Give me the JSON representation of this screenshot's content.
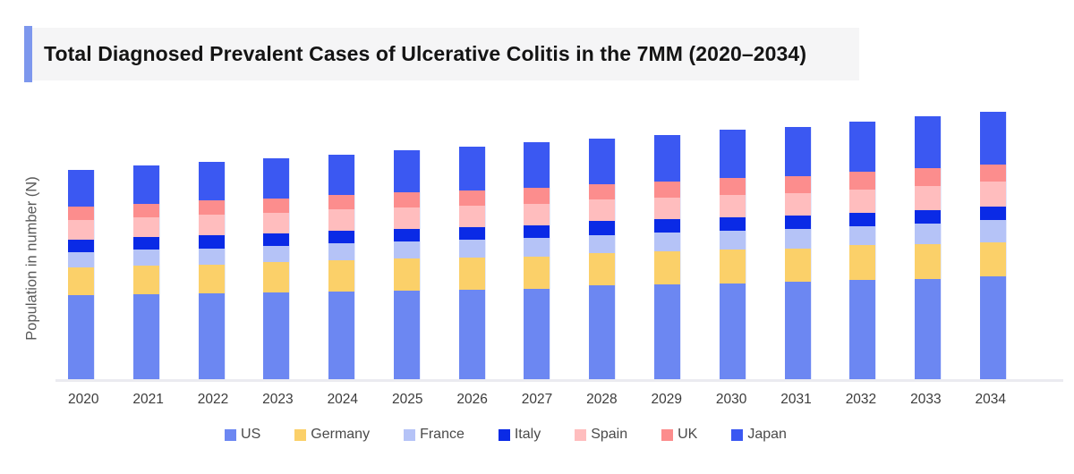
{
  "header": {
    "title": "Total Diagnosed Prevalent Cases of Ulcerative Colitis in the 7MM (2020–2034)",
    "accent_color": "#7d97ed",
    "background_color": "#f5f5f6"
  },
  "chart_data": {
    "type": "bar",
    "stacked": true,
    "title": "Total Diagnosed Prevalent Cases of Ulcerative Colitis in the 7MM (2020–2034)",
    "xlabel": "",
    "ylabel": "Population in number (N)",
    "y_axis_numeric_ticks_visible": false,
    "grid": false,
    "legend_position": "bottom",
    "ylim": [
      0,
      310
    ],
    "categories": [
      "2020",
      "2021",
      "2022",
      "2023",
      "2024",
      "2025",
      "2026",
      "2027",
      "2028",
      "2029",
      "2030",
      "2031",
      "2032",
      "2033",
      "2034"
    ],
    "series": [
      {
        "name": "US",
        "color": "#6c87f2",
        "values": [
          94,
          95,
          96,
          97,
          98,
          99,
          100,
          101,
          105,
          106,
          107,
          109,
          111,
          112,
          115
        ]
      },
      {
        "name": "Germany",
        "color": "#fbd069",
        "values": [
          31,
          32,
          32,
          34,
          35,
          36,
          36,
          36,
          36,
          37,
          38,
          37,
          39,
          39,
          38
        ]
      },
      {
        "name": "France",
        "color": "#b5c3f7",
        "values": [
          17,
          18,
          18,
          18,
          19,
          19,
          20,
          21,
          20,
          21,
          21,
          22,
          21,
          23,
          25
        ]
      },
      {
        "name": "Italy",
        "color": "#0a2ae6",
        "values": [
          14,
          14,
          15,
          14,
          14,
          14,
          14,
          14,
          16,
          15,
          15,
          15,
          15,
          15,
          15
        ]
      },
      {
        "name": "Spain",
        "color": "#ffbdbe",
        "values": [
          22,
          22,
          23,
          23,
          24,
          24,
          24,
          24,
          24,
          24,
          25,
          25,
          26,
          27,
          28
        ]
      },
      {
        "name": "UK",
        "color": "#fc8d8d",
        "values": [
          15,
          15,
          16,
          16,
          16,
          17,
          17,
          18,
          17,
          18,
          19,
          19,
          20,
          20,
          19
        ]
      },
      {
        "name": "Japan",
        "color": "#3b58f2",
        "values": [
          41,
          43,
          43,
          45,
          45,
          47,
          49,
          51,
          51,
          52,
          54,
          55,
          56,
          58,
          59
        ]
      }
    ]
  },
  "colors": {
    "axis_line": "#ebebf0",
    "x_tick_label": "#3c3c3c",
    "y_axis_label": "#595959",
    "legend_label": "#4a4a4a",
    "title_text": "#141414"
  }
}
